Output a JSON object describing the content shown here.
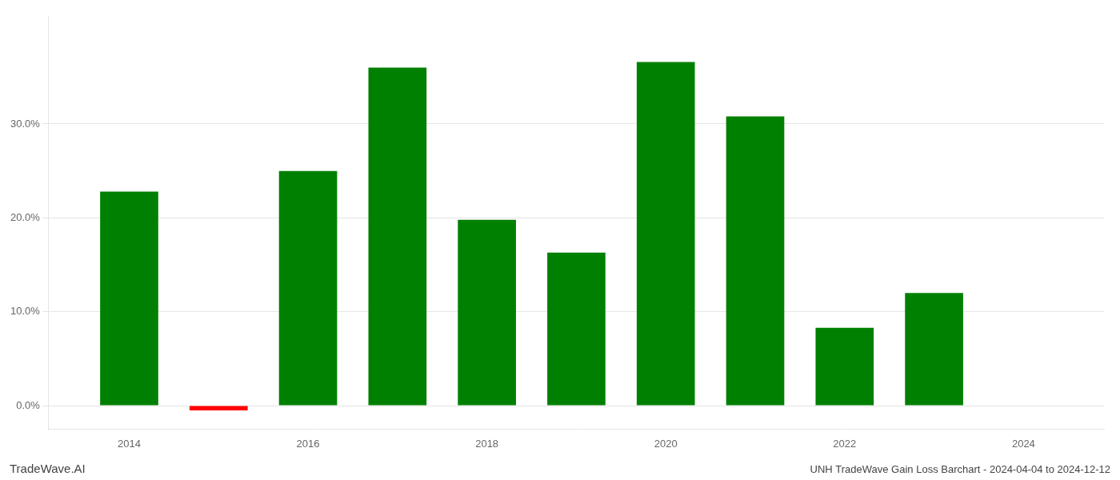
{
  "chart_data": {
    "type": "bar",
    "x": [
      2014,
      2015,
      2016,
      2017,
      2018,
      2019,
      2020,
      2021,
      2022,
      2023
    ],
    "values": [
      0.228,
      -0.005,
      0.25,
      0.36,
      0.198,
      0.163,
      0.366,
      0.308,
      0.083,
      0.12
    ],
    "colors": [
      "#008000",
      "#ff0000",
      "#008000",
      "#008000",
      "#008000",
      "#008000",
      "#008000",
      "#008000",
      "#008000",
      "#008000"
    ],
    "xlim": [
      2013.1,
      2024.9
    ],
    "xticks": [
      2014,
      2016,
      2018,
      2020,
      2022,
      2024
    ],
    "ylim": [
      -0.025,
      0.415
    ],
    "yticks": [
      {
        "value": 0,
        "label": "0.0%"
      },
      {
        "value": 0.1,
        "label": "10.0%"
      },
      {
        "value": 0.2,
        "label": "20.0%"
      },
      {
        "value": 0.3,
        "label": "30.0%"
      }
    ],
    "grid": true,
    "annotations": [
      "TradeWave.AI",
      "UNH TradeWave Gain Loss Barchart - 2024-04-04 to 2024-12-12"
    ]
  }
}
